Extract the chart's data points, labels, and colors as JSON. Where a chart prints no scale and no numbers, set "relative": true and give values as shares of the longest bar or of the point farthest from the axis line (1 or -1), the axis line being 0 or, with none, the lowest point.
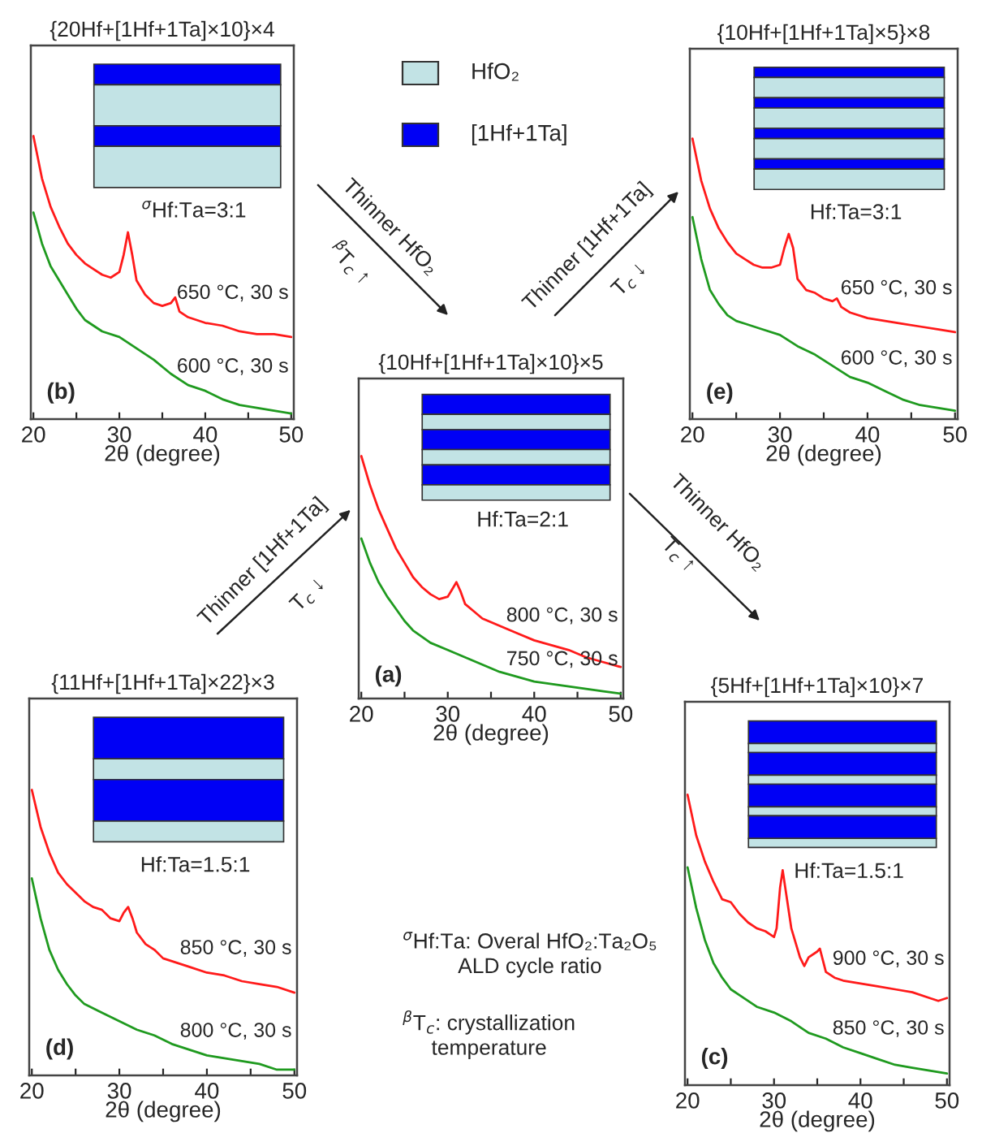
{
  "chart_data": [
    {
      "type": "line",
      "title": "{20Hf+[1Hf+1Ta]×10}×4",
      "xlabel": "2θ (degree)",
      "relative": true,
      "xlim": [
        19.7,
        50.3
      ],
      "tick_labels": "x",
      "xticks": [
        20,
        {
          "value": 25,
          "label": null
        },
        30,
        {
          "value": 35,
          "label": null
        },
        40,
        {
          "value": 45,
          "label": null
        },
        50
      ],
      "annotations": [
        "(b)",
        "$^{σ}$Hf:Ta=3:1"
      ],
      "series": [
        {
          "name": "650 °C, 30 s",
          "color": "#ff1a1a",
          "x": [
            20,
            21,
            22,
            23,
            24,
            25,
            26,
            27,
            28,
            29,
            30,
            30.5,
            31,
            31.5,
            32,
            33,
            34,
            35,
            36,
            36.5,
            37,
            38,
            40,
            42,
            44,
            46,
            48,
            50
          ],
          "values": [
            1.0,
            0.85,
            0.75,
            0.68,
            0.62,
            0.58,
            0.55,
            0.53,
            0.51,
            0.5,
            0.52,
            0.58,
            0.66,
            0.58,
            0.49,
            0.44,
            0.41,
            0.4,
            0.41,
            0.43,
            0.38,
            0.36,
            0.34,
            0.33,
            0.31,
            0.3,
            0.3,
            0.29
          ]
        },
        {
          "name": "600 °C, 30 s",
          "color": "#1f9a1f",
          "x": [
            20,
            21,
            22,
            23,
            24,
            25,
            26,
            28,
            30,
            32,
            34,
            36,
            38,
            40,
            42,
            44,
            46,
            48,
            50
          ],
          "values": [
            0.73,
            0.62,
            0.54,
            0.49,
            0.44,
            0.39,
            0.35,
            0.31,
            0.29,
            0.25,
            0.21,
            0.16,
            0.12,
            0.1,
            0.07,
            0.05,
            0.04,
            0.03,
            0.02
          ]
        }
      ]
    },
    {
      "type": "line",
      "title": "{10Hf+[1Hf+1Ta]×5}×8",
      "xlabel": "2θ (degree)",
      "relative": true,
      "xlim": [
        19.7,
        50.3
      ],
      "tick_labels": "x",
      "xticks": [
        20,
        {
          "value": 25,
          "label": null
        },
        30,
        {
          "value": 35,
          "label": null
        },
        40,
        {
          "value": 45,
          "label": null
        },
        50
      ],
      "annotations": [
        "(e)",
        "Hf:Ta=3:1"
      ],
      "series": [
        {
          "name": "650 °C, 30 s",
          "color": "#ff1a1a",
          "x": [
            20,
            21,
            22,
            23,
            24,
            25,
            26,
            27,
            28,
            29,
            30,
            30.5,
            31,
            31.5,
            32,
            33,
            34,
            35,
            36,
            36.5,
            37,
            38,
            40,
            42,
            44,
            46,
            48,
            50
          ],
          "values": [
            1.0,
            0.85,
            0.75,
            0.68,
            0.63,
            0.59,
            0.57,
            0.55,
            0.54,
            0.54,
            0.55,
            0.61,
            0.66,
            0.61,
            0.5,
            0.46,
            0.45,
            0.43,
            0.42,
            0.43,
            0.4,
            0.38,
            0.36,
            0.35,
            0.34,
            0.33,
            0.32,
            0.31
          ]
        },
        {
          "name": "600 °C, 30 s",
          "color": "#1f9a1f",
          "x": [
            20,
            21,
            22,
            23,
            24,
            25,
            26,
            27,
            28,
            30,
            32,
            34,
            36,
            38,
            40,
            42,
            44,
            46,
            48,
            50
          ],
          "values": [
            0.72,
            0.57,
            0.46,
            0.41,
            0.37,
            0.35,
            0.34,
            0.33,
            0.32,
            0.3,
            0.26,
            0.23,
            0.19,
            0.15,
            0.13,
            0.1,
            0.07,
            0.05,
            0.04,
            0.03
          ]
        }
      ]
    },
    {
      "type": "line",
      "title": "{10Hf+[1Hf+1Ta]×10}×5",
      "xlabel": "2θ (degree)",
      "relative": true,
      "xlim": [
        19.7,
        50.3
      ],
      "tick_labels": "x",
      "xticks": [
        20,
        {
          "value": 25,
          "label": null
        },
        30,
        {
          "value": 35,
          "label": null
        },
        40,
        {
          "value": 45,
          "label": null
        },
        50
      ],
      "annotations": [
        "(a)",
        "Hf:Ta=2:1",
        "HfO₂",
        "[1Hf+1Ta]",
        "Thinner HfO₂",
        "$^{β}$T$_{c}$ ↑",
        "Thinner [1Hf+1Ta]",
        "T$_{c}$ ↓",
        "Thinner [1Hf+1Ta]",
        "T$_{c}$ ↓",
        "Thinner HfO₂",
        "T$_{c}$ ↑",
        "$^{σ}$Hf:Ta: Overal HfO₂:Ta₂O₅\nALD cycle ratio",
        "$^{β}$T$_{c}$: crystallization\ntemperature"
      ],
      "series": [
        {
          "name": "800 °C, 30 s",
          "color": "#ff1a1a",
          "x": [
            20,
            21,
            22,
            23,
            24,
            25,
            26,
            27,
            28,
            29,
            30,
            30.5,
            31,
            31.5,
            32,
            33,
            34,
            36,
            38,
            40,
            42,
            44,
            46,
            48,
            50
          ],
          "values": [
            1.0,
            0.88,
            0.78,
            0.7,
            0.62,
            0.56,
            0.5,
            0.46,
            0.43,
            0.41,
            0.42,
            0.45,
            0.48,
            0.44,
            0.39,
            0.36,
            0.33,
            0.3,
            0.27,
            0.24,
            0.22,
            0.2,
            0.17,
            0.15,
            0.13
          ]
        },
        {
          "name": "750 °C, 30 s",
          "color": "#1f9a1f",
          "x": [
            20,
            21,
            22,
            23,
            24,
            25,
            26,
            28,
            30,
            32,
            34,
            36,
            38,
            40,
            42,
            44,
            46,
            48,
            50
          ],
          "values": [
            0.66,
            0.56,
            0.48,
            0.42,
            0.37,
            0.32,
            0.28,
            0.23,
            0.2,
            0.17,
            0.14,
            0.11,
            0.09,
            0.07,
            0.06,
            0.05,
            0.04,
            0.03,
            0.02
          ]
        }
      ]
    },
    {
      "type": "line",
      "title": "{11Hf+[1Hf+1Ta]×22}×3",
      "xlabel": "2θ (degree)",
      "relative": true,
      "xlim": [
        19.7,
        50.3
      ],
      "tick_labels": "x",
      "xticks": [
        20,
        {
          "value": 25,
          "label": null
        },
        30,
        {
          "value": 35,
          "label": null
        },
        40,
        {
          "value": 45,
          "label": null
        },
        50
      ],
      "annotations": [
        "(d)",
        "Hf:Ta=1.5:1"
      ],
      "series": [
        {
          "name": "850 °C, 30 s",
          "color": "#ff1a1a",
          "x": [
            20,
            21,
            22,
            23,
            24,
            25,
            26,
            27,
            28,
            29,
            30,
            30.5,
            31,
            31.5,
            32,
            33,
            34,
            35,
            36,
            38,
            40,
            42,
            44,
            46,
            48,
            50
          ],
          "values": [
            1.0,
            0.87,
            0.78,
            0.71,
            0.67,
            0.64,
            0.61,
            0.59,
            0.58,
            0.55,
            0.54,
            0.57,
            0.59,
            0.55,
            0.5,
            0.46,
            0.44,
            0.41,
            0.4,
            0.38,
            0.36,
            0.35,
            0.33,
            0.32,
            0.31,
            0.29
          ]
        },
        {
          "name": "800 °C, 30 s",
          "color": "#1f9a1f",
          "x": [
            20,
            21,
            22,
            23,
            24,
            25,
            26,
            28,
            30,
            32,
            34,
            36,
            38,
            40,
            42,
            44,
            46,
            48,
            50
          ],
          "values": [
            0.69,
            0.55,
            0.44,
            0.37,
            0.32,
            0.28,
            0.25,
            0.22,
            0.19,
            0.16,
            0.14,
            0.11,
            0.09,
            0.07,
            0.06,
            0.05,
            0.04,
            0.02,
            0.02
          ]
        }
      ]
    },
    {
      "type": "line",
      "title": "{5Hf+[1Hf+1Ta]×10}×7",
      "xlabel": "2θ (degree)",
      "relative": true,
      "xlim": [
        19.7,
        50.3
      ],
      "tick_labels": "x",
      "xticks": [
        20,
        {
          "value": 25,
          "label": null
        },
        30,
        {
          "value": 35,
          "label": null
        },
        40,
        {
          "value": 45,
          "label": null
        },
        50
      ],
      "annotations": [
        "(c)",
        "Hf:Ta=1.5:1"
      ],
      "series": [
        {
          "name": "900 °C, 30 s",
          "color": "#ff1a1a",
          "x": [
            20,
            21,
            22,
            23,
            24,
            25,
            26,
            27,
            28,
            29,
            30,
            30.3,
            30.7,
            31,
            31.4,
            32,
            33,
            33.5,
            34,
            35,
            35.3,
            36,
            37,
            38,
            40,
            42,
            44,
            46,
            48,
            49,
            50
          ],
          "values": [
            1.0,
            0.86,
            0.77,
            0.7,
            0.64,
            0.63,
            0.59,
            0.56,
            0.54,
            0.53,
            0.51,
            0.54,
            0.68,
            0.74,
            0.66,
            0.54,
            0.44,
            0.41,
            0.44,
            0.46,
            0.47,
            0.39,
            0.37,
            0.36,
            0.35,
            0.34,
            0.33,
            0.32,
            0.3,
            0.29,
            0.3
          ]
        },
        {
          "name": "850 °C, 30 s",
          "color": "#1f9a1f",
          "x": [
            20,
            21,
            22,
            23,
            24,
            25,
            26,
            28,
            30,
            32,
            34,
            36,
            38,
            40,
            42,
            44,
            46,
            48,
            50
          ],
          "values": [
            0.75,
            0.61,
            0.5,
            0.42,
            0.37,
            0.33,
            0.31,
            0.27,
            0.25,
            0.22,
            0.18,
            0.16,
            0.13,
            0.11,
            0.09,
            0.07,
            0.06,
            0.05,
            0.04
          ]
        }
      ]
    }
  ]
}
